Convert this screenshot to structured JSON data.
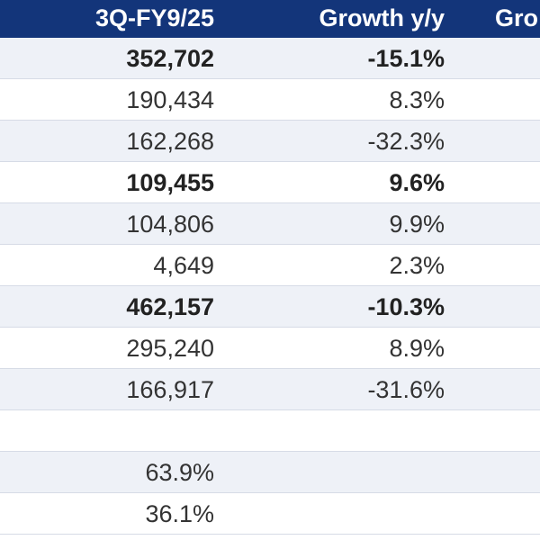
{
  "header": {
    "col1": "3Q-FY9/25",
    "col2": "Growth y/y",
    "col3": "Gro"
  },
  "rows": [
    {
      "value": "352,702",
      "growth": "-15.1%",
      "bold": true
    },
    {
      "value": "190,434",
      "growth": "8.3%",
      "bold": false
    },
    {
      "value": "162,268",
      "growth": "-32.3%",
      "bold": false
    },
    {
      "value": "109,455",
      "growth": "9.6%",
      "bold": true
    },
    {
      "value": "104,806",
      "growth": "9.9%",
      "bold": false
    },
    {
      "value": "4,649",
      "growth": "2.3%",
      "bold": false
    },
    {
      "value": "462,157",
      "growth": "-10.3%",
      "bold": true
    },
    {
      "value": "295,240",
      "growth": "8.9%",
      "bold": false
    },
    {
      "value": "166,917",
      "growth": "-31.6%",
      "bold": false
    },
    {
      "value": "",
      "growth": "",
      "bold": false
    },
    {
      "value": "63.9%",
      "growth": "",
      "bold": false
    },
    {
      "value": "36.1%",
      "growth": "",
      "bold": false
    }
  ],
  "colors": {
    "header_bg": "#13357a",
    "row_shade": "#eef1f7"
  }
}
